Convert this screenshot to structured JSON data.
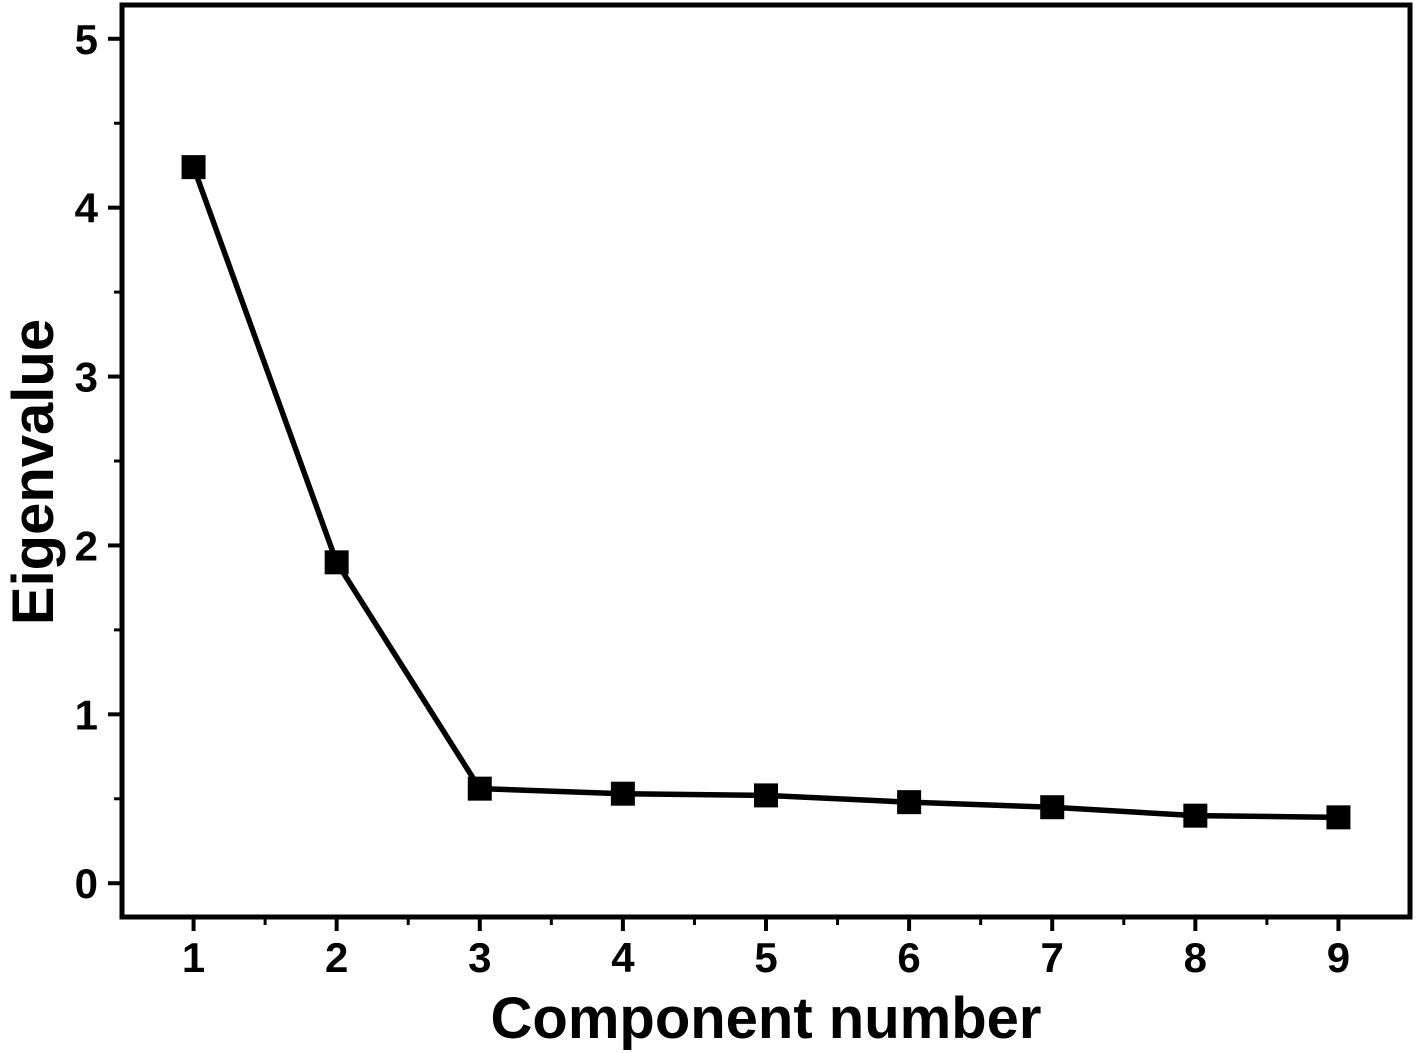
{
  "chart_data": {
    "type": "line",
    "title": "",
    "xlabel": "Component number",
    "ylabel": "Eigenvalue",
    "x": [
      1,
      2,
      3,
      4,
      5,
      6,
      7,
      8,
      9
    ],
    "series": [
      {
        "name": "Eigenvalue",
        "values": [
          4.24,
          1.9,
          0.56,
          0.53,
          0.52,
          0.48,
          0.45,
          0.4,
          0.39
        ]
      }
    ],
    "xlim": [
      0.5,
      9.5
    ],
    "ylim": [
      -0.2,
      5.2
    ],
    "x_major_ticks": [
      1,
      2,
      3,
      4,
      5,
      6,
      7,
      8,
      9
    ],
    "x_minor_ticks": [
      1.5,
      2.5,
      3.5,
      4.5,
      5.5,
      6.5,
      7.5,
      8.5
    ],
    "y_major_ticks": [
      0,
      1,
      2,
      3,
      4,
      5
    ],
    "y_minor_ticks": [
      0.5,
      1.5,
      2.5,
      3.5,
      4.5
    ],
    "x_tick_labels": [
      "1",
      "2",
      "3",
      "4",
      "5",
      "6",
      "7",
      "8",
      "9"
    ],
    "y_tick_labels": [
      "0",
      "1",
      "2",
      "3",
      "4",
      "5"
    ],
    "marker": "filled-square",
    "line_color": "#000000",
    "marker_color": "#000000",
    "background_color": "#ffffff",
    "grid": false,
    "legend": false
  }
}
